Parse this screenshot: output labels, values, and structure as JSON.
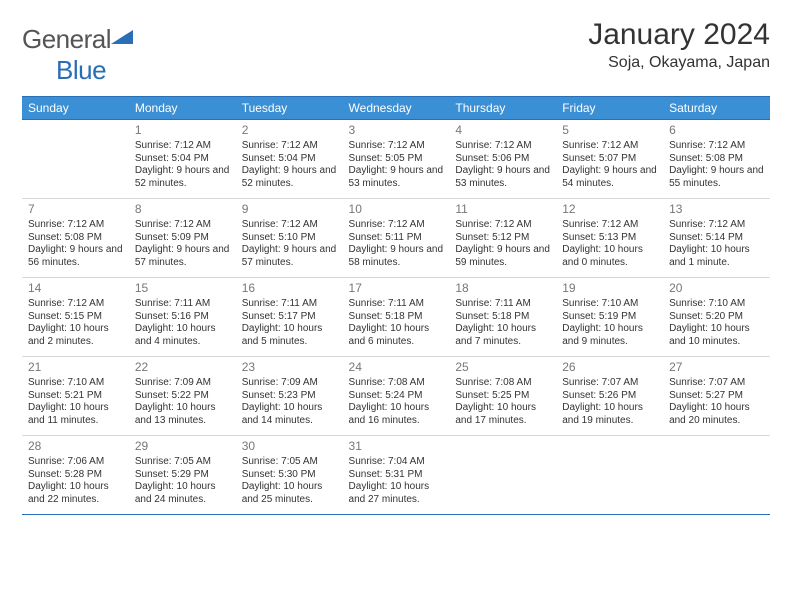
{
  "brand": {
    "general": "General",
    "blue": "Blue"
  },
  "title": "January 2024",
  "location": "Soja, Okayama, Japan",
  "colors": {
    "header_bg": "#3b8fd4",
    "rule": "#2a6fb5",
    "logo_accent": "#2a6fb5"
  },
  "weekdays": [
    "Sunday",
    "Monday",
    "Tuesday",
    "Wednesday",
    "Thursday",
    "Friday",
    "Saturday"
  ],
  "weeks": [
    [
      null,
      {
        "d": "1",
        "sr": "Sunrise: 7:12 AM",
        "ss": "Sunset: 5:04 PM",
        "dl": "Daylight: 9 hours and 52 minutes."
      },
      {
        "d": "2",
        "sr": "Sunrise: 7:12 AM",
        "ss": "Sunset: 5:04 PM",
        "dl": "Daylight: 9 hours and 52 minutes."
      },
      {
        "d": "3",
        "sr": "Sunrise: 7:12 AM",
        "ss": "Sunset: 5:05 PM",
        "dl": "Daylight: 9 hours and 53 minutes."
      },
      {
        "d": "4",
        "sr": "Sunrise: 7:12 AM",
        "ss": "Sunset: 5:06 PM",
        "dl": "Daylight: 9 hours and 53 minutes."
      },
      {
        "d": "5",
        "sr": "Sunrise: 7:12 AM",
        "ss": "Sunset: 5:07 PM",
        "dl": "Daylight: 9 hours and 54 minutes."
      },
      {
        "d": "6",
        "sr": "Sunrise: 7:12 AM",
        "ss": "Sunset: 5:08 PM",
        "dl": "Daylight: 9 hours and 55 minutes."
      }
    ],
    [
      {
        "d": "7",
        "sr": "Sunrise: 7:12 AM",
        "ss": "Sunset: 5:08 PM",
        "dl": "Daylight: 9 hours and 56 minutes."
      },
      {
        "d": "8",
        "sr": "Sunrise: 7:12 AM",
        "ss": "Sunset: 5:09 PM",
        "dl": "Daylight: 9 hours and 57 minutes."
      },
      {
        "d": "9",
        "sr": "Sunrise: 7:12 AM",
        "ss": "Sunset: 5:10 PM",
        "dl": "Daylight: 9 hours and 57 minutes."
      },
      {
        "d": "10",
        "sr": "Sunrise: 7:12 AM",
        "ss": "Sunset: 5:11 PM",
        "dl": "Daylight: 9 hours and 58 minutes."
      },
      {
        "d": "11",
        "sr": "Sunrise: 7:12 AM",
        "ss": "Sunset: 5:12 PM",
        "dl": "Daylight: 9 hours and 59 minutes."
      },
      {
        "d": "12",
        "sr": "Sunrise: 7:12 AM",
        "ss": "Sunset: 5:13 PM",
        "dl": "Daylight: 10 hours and 0 minutes."
      },
      {
        "d": "13",
        "sr": "Sunrise: 7:12 AM",
        "ss": "Sunset: 5:14 PM",
        "dl": "Daylight: 10 hours and 1 minute."
      }
    ],
    [
      {
        "d": "14",
        "sr": "Sunrise: 7:12 AM",
        "ss": "Sunset: 5:15 PM",
        "dl": "Daylight: 10 hours and 2 minutes."
      },
      {
        "d": "15",
        "sr": "Sunrise: 7:11 AM",
        "ss": "Sunset: 5:16 PM",
        "dl": "Daylight: 10 hours and 4 minutes."
      },
      {
        "d": "16",
        "sr": "Sunrise: 7:11 AM",
        "ss": "Sunset: 5:17 PM",
        "dl": "Daylight: 10 hours and 5 minutes."
      },
      {
        "d": "17",
        "sr": "Sunrise: 7:11 AM",
        "ss": "Sunset: 5:18 PM",
        "dl": "Daylight: 10 hours and 6 minutes."
      },
      {
        "d": "18",
        "sr": "Sunrise: 7:11 AM",
        "ss": "Sunset: 5:18 PM",
        "dl": "Daylight: 10 hours and 7 minutes."
      },
      {
        "d": "19",
        "sr": "Sunrise: 7:10 AM",
        "ss": "Sunset: 5:19 PM",
        "dl": "Daylight: 10 hours and 9 minutes."
      },
      {
        "d": "20",
        "sr": "Sunrise: 7:10 AM",
        "ss": "Sunset: 5:20 PM",
        "dl": "Daylight: 10 hours and 10 minutes."
      }
    ],
    [
      {
        "d": "21",
        "sr": "Sunrise: 7:10 AM",
        "ss": "Sunset: 5:21 PM",
        "dl": "Daylight: 10 hours and 11 minutes."
      },
      {
        "d": "22",
        "sr": "Sunrise: 7:09 AM",
        "ss": "Sunset: 5:22 PM",
        "dl": "Daylight: 10 hours and 13 minutes."
      },
      {
        "d": "23",
        "sr": "Sunrise: 7:09 AM",
        "ss": "Sunset: 5:23 PM",
        "dl": "Daylight: 10 hours and 14 minutes."
      },
      {
        "d": "24",
        "sr": "Sunrise: 7:08 AM",
        "ss": "Sunset: 5:24 PM",
        "dl": "Daylight: 10 hours and 16 minutes."
      },
      {
        "d": "25",
        "sr": "Sunrise: 7:08 AM",
        "ss": "Sunset: 5:25 PM",
        "dl": "Daylight: 10 hours and 17 minutes."
      },
      {
        "d": "26",
        "sr": "Sunrise: 7:07 AM",
        "ss": "Sunset: 5:26 PM",
        "dl": "Daylight: 10 hours and 19 minutes."
      },
      {
        "d": "27",
        "sr": "Sunrise: 7:07 AM",
        "ss": "Sunset: 5:27 PM",
        "dl": "Daylight: 10 hours and 20 minutes."
      }
    ],
    [
      {
        "d": "28",
        "sr": "Sunrise: 7:06 AM",
        "ss": "Sunset: 5:28 PM",
        "dl": "Daylight: 10 hours and 22 minutes."
      },
      {
        "d": "29",
        "sr": "Sunrise: 7:05 AM",
        "ss": "Sunset: 5:29 PM",
        "dl": "Daylight: 10 hours and 24 minutes."
      },
      {
        "d": "30",
        "sr": "Sunrise: 7:05 AM",
        "ss": "Sunset: 5:30 PM",
        "dl": "Daylight: 10 hours and 25 minutes."
      },
      {
        "d": "31",
        "sr": "Sunrise: 7:04 AM",
        "ss": "Sunset: 5:31 PM",
        "dl": "Daylight: 10 hours and 27 minutes."
      },
      null,
      null,
      null
    ]
  ]
}
